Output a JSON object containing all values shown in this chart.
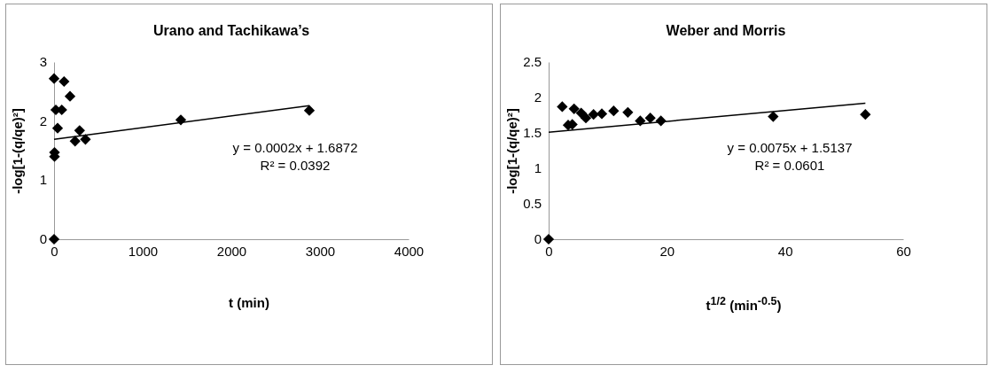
{
  "chart_data": [
    {
      "type": "scatter",
      "title": "Urano and Tachikawa’s",
      "xlabel": "t (min)",
      "ylabel": "-log[1-(q/qe)²]",
      "xlim": [
        0,
        4000
      ],
      "xticks": [
        0,
        1000,
        2000,
        3000,
        4000
      ],
      "ylim": [
        0,
        3
      ],
      "yticks": [
        0,
        1,
        2,
        3
      ],
      "annotations": [
        "y = 0.0002x + 1.6872",
        "R² = 0.0392"
      ],
      "series": [
        {
          "color": "#000000",
          "marker": "diamond",
          "x": [
            0,
            113,
            180,
            20,
            87,
            40,
            288,
            237,
            354,
            5,
            5,
            0,
            1430,
            2880
          ],
          "values": [
            2.72,
            2.67,
            2.42,
            2.19,
            2.19,
            1.88,
            1.84,
            1.66,
            1.69,
            1.47,
            1.4,
            0,
            2.02,
            2.18
          ]
        },
        {
          "type": "line",
          "color": "#000000",
          "x": [
            0,
            2880
          ],
          "values": [
            1.69,
            2.26
          ]
        }
      ]
    },
    {
      "type": "scatter",
      "title": "Weber and Morris",
      "xlabel": "t$^{1/2}$ (min$^{-0.5}$)",
      "ylabel": "-log[1-(q/qe)²]",
      "xlim": [
        0,
        60
      ],
      "xticks": [
        0,
        20,
        40,
        60
      ],
      "ylim": [
        0,
        2.5
      ],
      "yticks": [
        0,
        0.5,
        1,
        1.5,
        2,
        2.5
      ],
      "annotations": [
        "y = 0.0075x + 1.5137",
        "R² = 0.0601"
      ],
      "series": [
        {
          "color": "#000000",
          "marker": "diamond",
          "x": [
            2.3,
            3.3,
            4.0,
            4.3,
            5.5,
            6.3,
            7.6,
            9.0,
            11.0,
            13.4,
            15.5,
            17.2,
            19.0,
            0,
            38.0,
            53.6
          ],
          "values": [
            1.87,
            1.61,
            1.62,
            1.84,
            1.78,
            1.71,
            1.76,
            1.77,
            1.81,
            1.79,
            1.67,
            1.71,
            1.67,
            0,
            1.73,
            1.76
          ]
        },
        {
          "type": "line",
          "color": "#000000",
          "x": [
            0,
            53.6
          ],
          "values": [
            1.51,
            1.92
          ]
        }
      ]
    }
  ]
}
